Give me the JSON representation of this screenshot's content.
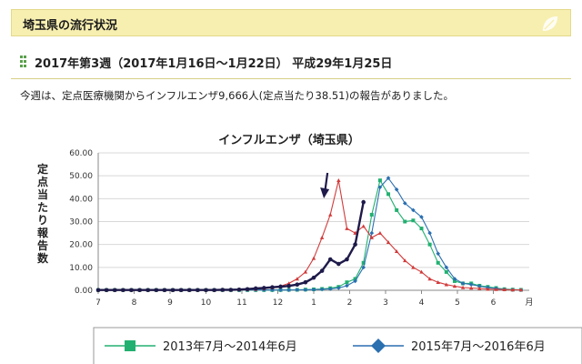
{
  "banner": {
    "title": "埼玉県の流行状況",
    "icon": "leaf-icon"
  },
  "section": {
    "title": "2017年第3週（2017年1月16日〜1月22日） 平成29年1月25日"
  },
  "report": {
    "text": "今週は、定点医療機関からインフルエンザ9,666人(定点当たり38.51)の報告がありました。"
  },
  "chart_data": {
    "type": "line",
    "title": "インフルエンザ（埼玉県）",
    "ylabel": "定点当たり報告数",
    "xlabel": "",
    "ylim": [
      0,
      60
    ],
    "yticks": [
      "0.00",
      "10.00",
      "20.00",
      "30.00",
      "40.00",
      "50.00",
      "60.00"
    ],
    "x_month_labels": [
      "7",
      "8",
      "9",
      "10",
      "11",
      "12",
      "1",
      "2",
      "3",
      "4",
      "5",
      "6"
    ],
    "x_unit": "月",
    "weeks_in_season": 52,
    "grid": "horizontal",
    "current_week_arrow": {
      "week": 27
    },
    "colors": {
      "current": "#1e1a4a",
      "prev": "#d23a3a",
      "s2013": "#22b070",
      "s2015": "#2a6fb0"
    },
    "series": [
      {
        "id": "current",
        "color": "#1e1a4a",
        "values": [
          0.1,
          0.1,
          0.1,
          0.1,
          0.1,
          0.1,
          0.1,
          0.1,
          0.1,
          0.1,
          0.1,
          0.1,
          0.1,
          0.1,
          0.1,
          0.2,
          0.2,
          0.3,
          0.5,
          0.8,
          1.0,
          1.3,
          1.6,
          1.9,
          2.5,
          3.5,
          5.5,
          8.5,
          13.5,
          11.5,
          13.5,
          20.0,
          38.5
        ]
      },
      {
        "id": "prev",
        "color": "#d23a3a",
        "values": [
          0.1,
          0.1,
          0.1,
          0.1,
          0.1,
          0.1,
          0.1,
          0.1,
          0.1,
          0.1,
          0.1,
          0.1,
          0.1,
          0.1,
          0.1,
          0.2,
          0.2,
          0.3,
          0.4,
          0.5,
          0.8,
          1.2,
          1.8,
          3.0,
          5.0,
          8.0,
          14.0,
          23.0,
          33.0,
          48.0,
          27.0,
          25.0,
          28.0,
          23.0,
          25.0,
          21.0,
          17.0,
          13.0,
          10.0,
          8.0,
          5.0,
          3.5,
          2.5,
          1.8,
          1.2,
          1.0,
          0.8,
          0.5,
          0.4,
          0.3,
          0.2,
          0.2
        ]
      },
      {
        "id": "s2013",
        "name": "2013年7月〜2014年6月",
        "color": "#22b070",
        "values": [
          0.1,
          0.1,
          0.1,
          0.1,
          0.1,
          0.1,
          0.1,
          0.1,
          0.1,
          0.1,
          0.1,
          0.1,
          0.1,
          0.1,
          0.1,
          0.1,
          0.1,
          0.1,
          0.1,
          0.1,
          0.1,
          0.1,
          0.1,
          0.2,
          0.2,
          0.3,
          0.4,
          0.6,
          0.9,
          1.5,
          3.5,
          5.0,
          12.0,
          33.0,
          48.0,
          42.0,
          35.0,
          30.0,
          30.5,
          27.0,
          20.0,
          12.0,
          8.0,
          4.0,
          3.0,
          3.0,
          2.0,
          1.5,
          1.0,
          0.5,
          0.3,
          0.2
        ]
      },
      {
        "id": "s2015",
        "name": "2015年7月〜2016年6月",
        "color": "#2a6fb0",
        "values": [
          0.1,
          0.1,
          0.1,
          0.1,
          0.1,
          0.1,
          0.1,
          0.1,
          0.1,
          0.1,
          0.1,
          0.1,
          0.1,
          0.1,
          0.1,
          0.1,
          0.1,
          0.1,
          0.1,
          0.1,
          0.1,
          0.1,
          0.1,
          0.1,
          0.2,
          0.2,
          0.3,
          0.4,
          0.6,
          1.0,
          2.0,
          4.0,
          10.0,
          25.0,
          45.0,
          49.0,
          44.0,
          38.0,
          35.0,
          32.0,
          25.0,
          16.0,
          10.0,
          5.0,
          3.0,
          2.5,
          1.8,
          1.2,
          0.8,
          0.4,
          0.2,
          0.1
        ]
      }
    ]
  }
}
